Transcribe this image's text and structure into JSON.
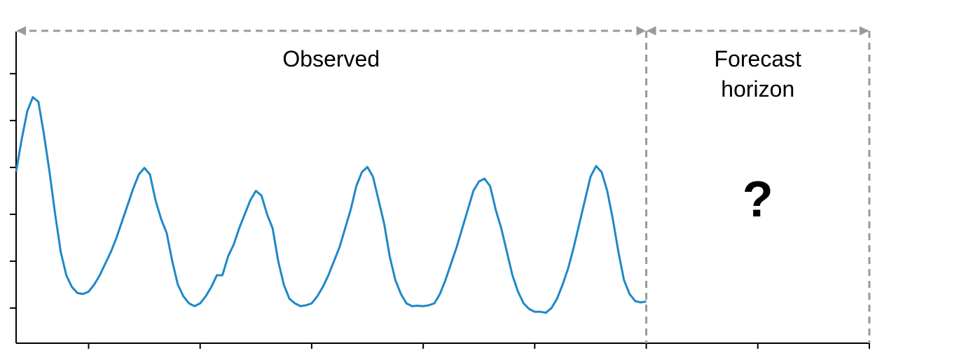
{
  "chart_data": {
    "type": "line",
    "x": [
      7,
      8,
      9,
      10,
      11,
      12,
      13,
      14,
      15,
      16,
      17,
      18,
      19,
      20,
      21,
      22,
      23,
      24,
      25,
      26,
      27,
      28,
      29,
      30,
      31,
      32,
      33,
      34,
      35,
      36,
      37,
      38,
      39,
      40,
      41,
      42,
      43,
      44,
      45,
      46,
      47,
      48,
      49,
      50,
      51,
      52,
      53,
      54,
      55,
      56,
      57,
      58,
      59,
      60,
      61,
      62,
      63,
      64,
      65,
      66,
      67,
      68,
      69,
      70,
      71,
      72,
      73,
      74,
      75,
      76,
      77,
      78,
      79,
      80,
      81,
      82,
      83,
      84,
      85,
      86,
      87,
      88,
      89,
      90,
      91,
      92,
      93,
      94,
      95,
      96,
      97,
      98,
      99,
      100,
      101,
      102,
      103,
      104,
      105,
      106,
      107,
      108,
      109,
      110,
      111,
      112,
      113,
      114,
      115,
      116,
      117,
      118,
      119,
      120
    ],
    "series": [
      {
        "name": "Observed",
        "color": "#1f88c6",
        "values": [
          3.91,
          4.6,
          5.2,
          5.5,
          5.4,
          4.7,
          3.9,
          3.0,
          2.2,
          1.7,
          1.45,
          1.32,
          1.3,
          1.35,
          1.5,
          1.7,
          1.95,
          2.2,
          2.5,
          2.85,
          3.2,
          3.55,
          3.85,
          3.99,
          3.85,
          3.3,
          2.9,
          2.6,
          2.0,
          1.5,
          1.25,
          1.1,
          1.04,
          1.1,
          1.25,
          1.45,
          1.7,
          1.7,
          2.1,
          2.35,
          2.7,
          3.0,
          3.3,
          3.5,
          3.4,
          3.0,
          2.7,
          2.0,
          1.5,
          1.2,
          1.1,
          1.04,
          1.06,
          1.1,
          1.25,
          1.45,
          1.7,
          2.0,
          2.3,
          2.7,
          3.1,
          3.6,
          3.9,
          4.01,
          3.8,
          3.3,
          2.8,
          2.1,
          1.6,
          1.3,
          1.1,
          1.04,
          1.05,
          1.04,
          1.06,
          1.1,
          1.3,
          1.6,
          1.95,
          2.3,
          2.7,
          3.1,
          3.5,
          3.7,
          3.76,
          3.6,
          3.1,
          2.7,
          2.2,
          1.7,
          1.35,
          1.1,
          0.98,
          0.92,
          0.92,
          0.9,
          1.0,
          1.2,
          1.5,
          1.85,
          2.3,
          2.8,
          3.3,
          3.8,
          4.03,
          3.9,
          3.5,
          2.9,
          2.2,
          1.6,
          1.3,
          1.15,
          1.12,
          1.14
        ]
      }
    ],
    "xlim": [
      7,
      160
    ],
    "xticks": [
      20,
      40,
      60,
      80,
      100,
      120,
      140,
      160
    ],
    "ylim": [
      0.25,
      6.9
    ],
    "yticks": [
      1,
      2,
      3,
      4,
      5,
      6
    ],
    "grid": false,
    "annotations": [
      "Observed",
      "Forecast horizon",
      "?"
    ]
  }
}
